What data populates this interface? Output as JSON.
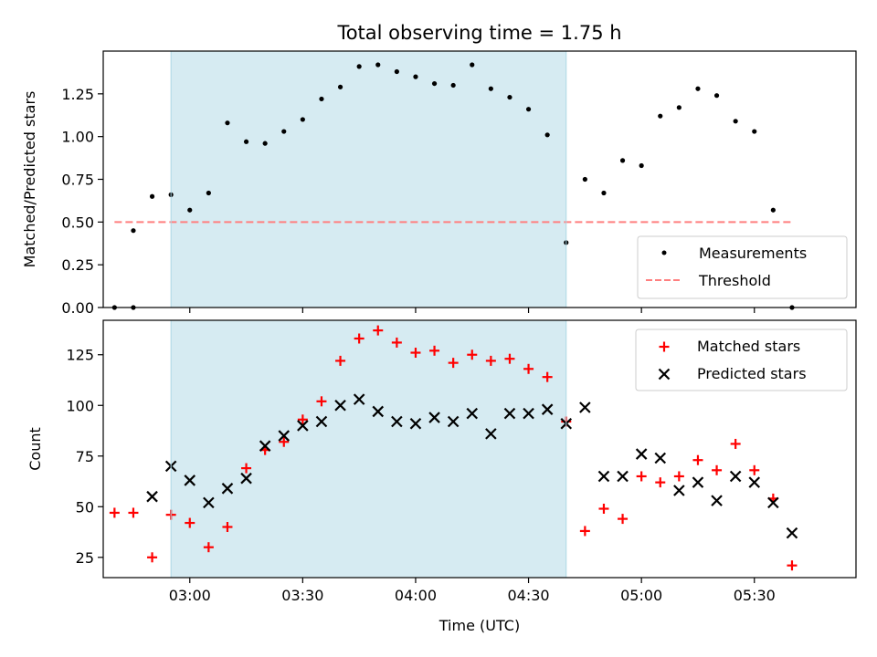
{
  "chart_data": [
    {
      "type": "scatter",
      "title": "Total observing time = 1.75 h",
      "xlabel": "",
      "ylabel": "Matched/Predicted stars",
      "ylim": [
        0,
        1.5
      ],
      "yticks": [
        "0.00",
        "0.25",
        "0.50",
        "0.75",
        "1.00",
        "1.25"
      ],
      "xlim": [
        "02:37",
        "05:57"
      ],
      "highlight_span": [
        "02:55",
        "04:40"
      ],
      "legend_position": "lower-right",
      "series": [
        {
          "name": "Measurements",
          "x": [
            "02:45",
            "02:50",
            "02:55",
            "03:00",
            "03:05",
            "03:10",
            "03:15",
            "03:20",
            "03:25",
            "03:30",
            "03:35",
            "03:40",
            "03:45",
            "03:50",
            "03:55",
            "04:00",
            "04:05",
            "04:10",
            "04:15",
            "04:20",
            "04:25",
            "04:30",
            "04:35",
            "04:40",
            "04:45",
            "04:50",
            "04:55",
            "05:00",
            "05:05",
            "05:10",
            "05:15",
            "05:20",
            "05:25",
            "05:30",
            "05:35",
            "05:40"
          ],
          "y": [
            0.45,
            0.65,
            0.66,
            0.57,
            0.67,
            1.08,
            0.97,
            0.96,
            1.03,
            1.1,
            1.22,
            1.29,
            1.41,
            1.42,
            1.38,
            1.35,
            1.31,
            1.3,
            1.42,
            1.28,
            1.23,
            1.16,
            1.01,
            0.38,
            0.75,
            0.67,
            0.86,
            0.83,
            1.12,
            1.17,
            1.28,
            1.24,
            1.09,
            1.03,
            0.57,
            0.0
          ],
          "color": "#000000"
        },
        {
          "name": "Threshold",
          "x": [
            "02:40",
            "05:40"
          ],
          "y": [
            0.5,
            0.5
          ],
          "color": "#ff7f7f",
          "style": "dashed"
        }
      ],
      "extra_points": {
        "x": [
          "02:40",
          "02:45"
        ],
        "y": [
          0.0,
          0.0
        ]
      }
    },
    {
      "type": "scatter",
      "title": "",
      "xlabel": "Time (UTC)",
      "ylabel": "Count",
      "ylim": [
        15,
        142
      ],
      "yticks": [
        "25",
        "50",
        "75",
        "100",
        "125"
      ],
      "xticks": [
        "03:00",
        "03:30",
        "04:00",
        "04:30",
        "05:00",
        "05:30"
      ],
      "xlim": [
        "02:37",
        "05:57"
      ],
      "highlight_span": [
        "02:55",
        "04:40"
      ],
      "legend_position": "upper-right",
      "series": [
        {
          "name": "Matched stars",
          "marker": "+",
          "color": "#ff0000",
          "x": [
            "02:40",
            "02:45",
            "02:50",
            "02:55",
            "03:00",
            "03:05",
            "03:10",
            "03:15",
            "03:20",
            "03:25",
            "03:30",
            "03:35",
            "03:40",
            "03:45",
            "03:50",
            "03:55",
            "04:00",
            "04:05",
            "04:10",
            "04:15",
            "04:20",
            "04:25",
            "04:30",
            "04:35",
            "04:40",
            "04:45",
            "04:50",
            "04:55",
            "05:00",
            "05:05",
            "05:10",
            "05:15",
            "05:20",
            "05:25",
            "05:30",
            "05:35",
            "05:40"
          ],
          "y": [
            47,
            47,
            25,
            46,
            42,
            30,
            40,
            69,
            78,
            82,
            93,
            102,
            122,
            133,
            137,
            131,
            126,
            127,
            121,
            125,
            122,
            123,
            118,
            114,
            92,
            38,
            49,
            44,
            65,
            62,
            65,
            73,
            68,
            81,
            68,
            54,
            21
          ]
        },
        {
          "name": "Predicted stars",
          "marker": "x",
          "color": "#000000",
          "x": [
            "02:50",
            "02:55",
            "03:00",
            "03:05",
            "03:10",
            "03:15",
            "03:20",
            "03:25",
            "03:30",
            "03:35",
            "03:40",
            "03:45",
            "03:50",
            "03:55",
            "04:00",
            "04:05",
            "04:10",
            "04:15",
            "04:20",
            "04:25",
            "04:30",
            "04:35",
            "04:40",
            "04:45",
            "04:50",
            "04:55",
            "05:00",
            "05:05",
            "05:10",
            "05:15",
            "05:20",
            "05:25",
            "05:30",
            "05:35",
            "05:40"
          ],
          "y": [
            55,
            70,
            63,
            52,
            59,
            64,
            80,
            85,
            90,
            92,
            100,
            103,
            97,
            92,
            91,
            94,
            92,
            96,
            86,
            96,
            96,
            98,
            91,
            99,
            65,
            65,
            76,
            74,
            58,
            62,
            53,
            65,
            62,
            52,
            37
          ]
        }
      ]
    }
  ]
}
